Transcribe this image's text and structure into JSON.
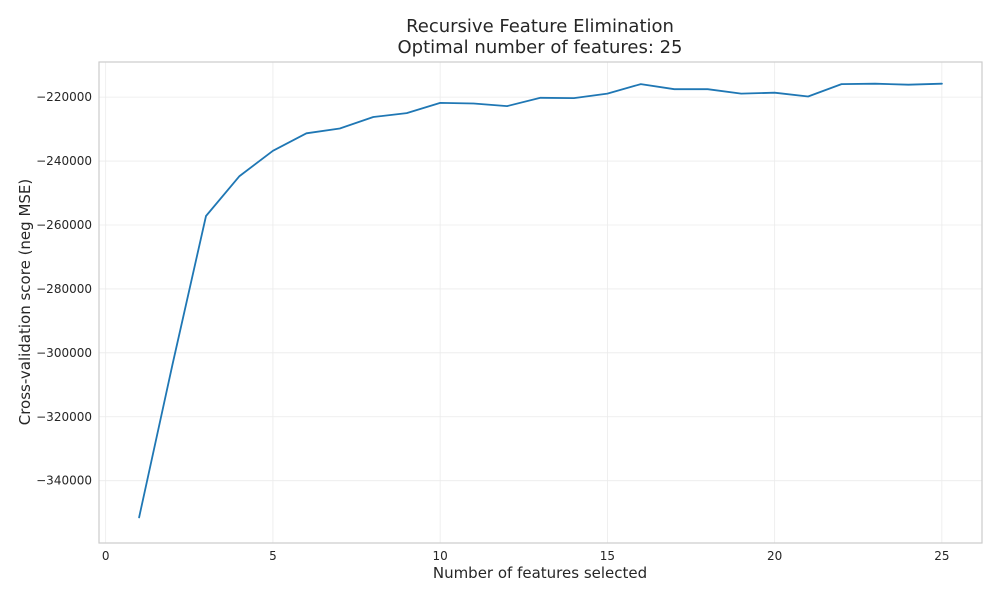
{
  "chart_data": {
    "type": "line",
    "title": "Recursive Feature Elimination",
    "subtitle": "Optimal number of features: 25",
    "xlabel": "Number of features selected",
    "ylabel": "Cross-validation score (neg MSE)",
    "xlim": [
      -0.2,
      26.2
    ],
    "ylim": [
      -359500,
      -209000
    ],
    "xticks": [
      0,
      5,
      10,
      15,
      20,
      25
    ],
    "xtick_labels": [
      "0",
      "5",
      "10",
      "15",
      "20",
      "25"
    ],
    "yticks": [
      -340000,
      -320000,
      -300000,
      -280000,
      -260000,
      -240000,
      -220000
    ],
    "ytick_labels": [
      "−340000",
      "−320000",
      "−300000",
      "−280000",
      "−260000",
      "−240000",
      "−220000"
    ],
    "grid": true,
    "series": [
      {
        "color": "#1f77b4",
        "x": [
          1,
          2,
          3,
          4,
          5,
          6,
          7,
          8,
          9,
          10,
          11,
          12,
          13,
          14,
          15,
          16,
          17,
          18,
          19,
          20,
          21,
          22,
          23,
          24,
          25
        ],
        "y": [
          -351500,
          -303500,
          -257200,
          -244700,
          -236800,
          -231300,
          -229800,
          -226200,
          -225000,
          -221800,
          -222000,
          -222800,
          -220200,
          -220300,
          -218900,
          -215900,
          -217500,
          -217500,
          -218900,
          -218600,
          -219800,
          -215900,
          -215800,
          -216100,
          -215800
        ]
      }
    ]
  }
}
